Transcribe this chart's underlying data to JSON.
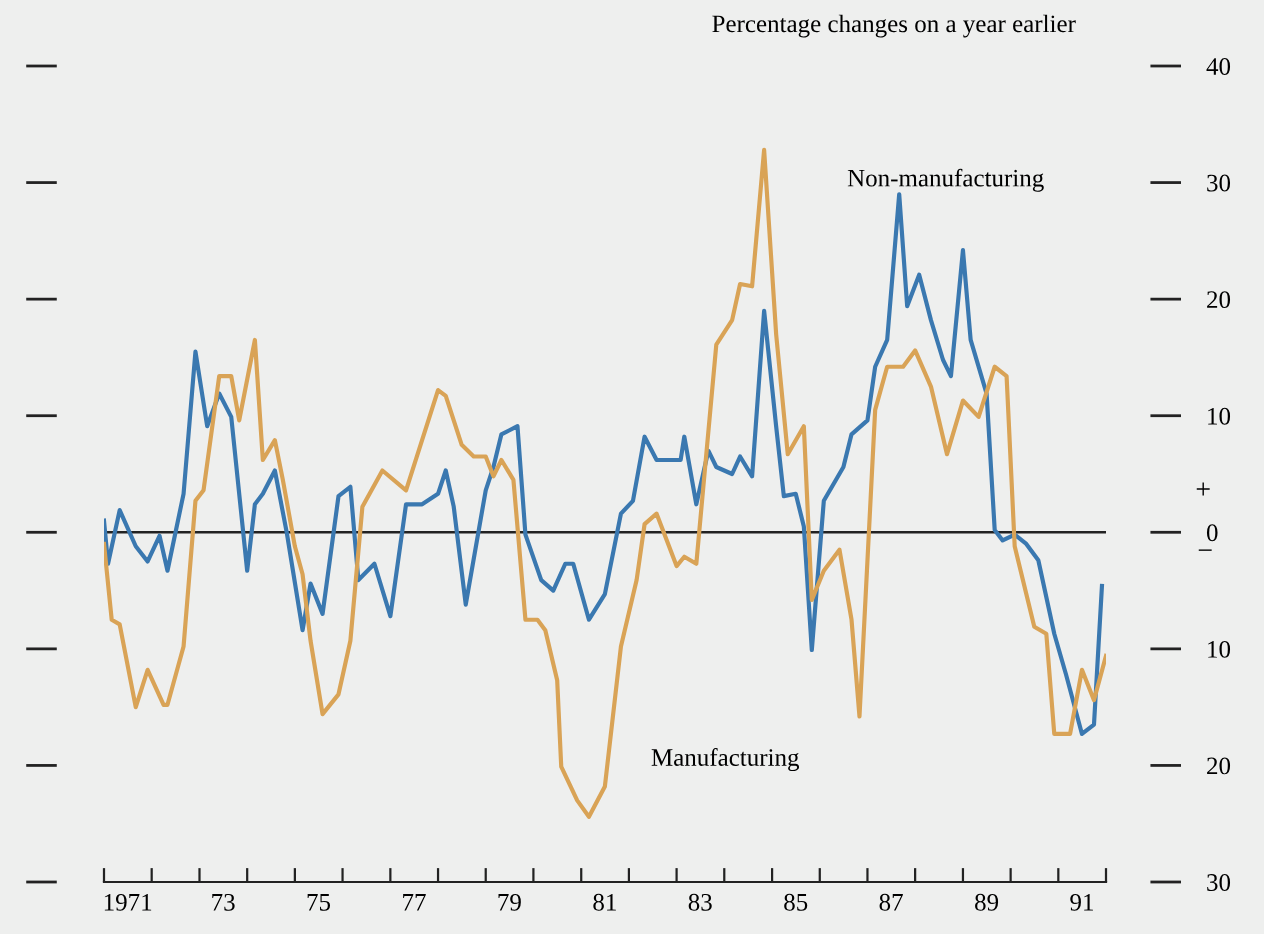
{
  "chart_data": {
    "type": "line",
    "ylabel": "Percentage changes on a year earlier",
    "annotations": [
      "+",
      "−"
    ],
    "series": [
      {
        "name": "Non-manufacturing",
        "color": "#3a78b0",
        "x": [
          "1971-01",
          "1971-02",
          "1971-05",
          "1971-09",
          "1971-12",
          "1972-03",
          "1972-05",
          "1972-09",
          "1972-12",
          "1973-03",
          "1973-06",
          "1973-09",
          "1974-01",
          "1974-03",
          "1974-05",
          "1974-08",
          "1974-11",
          "1975-03",
          "1975-05",
          "1975-08",
          "1975-12",
          "1976-03",
          "1976-05",
          "1976-09",
          "1977-01",
          "1977-05",
          "1977-09",
          "1978-01",
          "1978-03",
          "1978-05",
          "1978-08",
          "1979-01",
          "1979-03",
          "1979-05",
          "1979-09",
          "1979-11",
          "1980-03",
          "1980-06",
          "1980-09",
          "1980-11",
          "1981-03",
          "1981-07",
          "1981-11",
          "1982-02",
          "1982-05",
          "1982-08",
          "1983-02",
          "1983-03",
          "1983-06",
          "1983-09",
          "1983-11",
          "1984-03",
          "1984-05",
          "1984-08",
          "1984-11",
          "1985-02",
          "1985-04",
          "1985-07",
          "1985-09",
          "1985-11",
          "1986-02",
          "1986-07",
          "1986-09",
          "1987-01",
          "1987-03",
          "1987-06",
          "1987-09",
          "1987-11",
          "1988-02",
          "1988-05",
          "1988-08",
          "1988-10",
          "1989-01",
          "1989-03",
          "1989-07",
          "1989-09",
          "1989-11",
          "1990-02",
          "1990-05",
          "1990-08",
          "1990-12",
          "1991-03",
          "1991-07",
          "1991-10",
          "1991-12"
        ],
        "values": [
          1.0,
          -2.7,
          1.9,
          -1.2,
          -2.5,
          -0.3,
          -3.3,
          3.3,
          15.5,
          9.1,
          11.9,
          9.9,
          -3.3,
          2.4,
          3.3,
          5.3,
          -0.1,
          -8.4,
          -4.4,
          -7.0,
          3.1,
          3.9,
          -4.1,
          -2.7,
          -7.2,
          2.4,
          2.4,
          3.3,
          5.3,
          2.2,
          -6.2,
          3.6,
          5.6,
          8.4,
          9.1,
          -0.2,
          -4.1,
          -5.0,
          -2.7,
          -2.7,
          -7.5,
          -5.3,
          1.6,
          2.7,
          8.2,
          6.2,
          6.2,
          8.2,
          2.4,
          7.0,
          5.6,
          5.0,
          6.5,
          4.8,
          19.0,
          9.1,
          3.1,
          3.3,
          0.5,
          -10.1,
          2.7,
          5.6,
          8.4,
          9.6,
          14.2,
          16.5,
          29.0,
          19.4,
          22.1,
          18.2,
          14.8,
          13.4,
          24.2,
          16.5,
          11.9,
          0.2,
          -0.7,
          -0.2,
          -1.0,
          -2.4,
          -8.7,
          -12.2,
          -17.3,
          -16.5,
          -4.6
        ]
      },
      {
        "name": "Manufacturing",
        "color": "#d9a356",
        "x": [
          "1971-01",
          "1971-03",
          "1971-05",
          "1971-09",
          "1971-12",
          "1972-04",
          "1972-05",
          "1972-09",
          "1972-12",
          "1973-02",
          "1973-06",
          "1973-09",
          "1973-11",
          "1974-03",
          "1974-05",
          "1974-08",
          "1974-10",
          "1975-01",
          "1975-03",
          "1975-05",
          "1975-08",
          "1975-12",
          "1976-03",
          "1976-06",
          "1976-11",
          "1977-05",
          "1978-01",
          "1978-03",
          "1978-07",
          "1978-10",
          "1979-01",
          "1979-03",
          "1979-05",
          "1979-08",
          "1979-11",
          "1980-02",
          "1980-04",
          "1980-07",
          "1980-08",
          "1980-12",
          "1981-03",
          "1981-07",
          "1981-11",
          "1982-03",
          "1982-05",
          "1982-08",
          "1983-01",
          "1983-03",
          "1983-06",
          "1983-11",
          "1984-03",
          "1984-05",
          "1984-08",
          "1984-11",
          "1985-02",
          "1985-05",
          "1985-09",
          "1985-11",
          "1986-02",
          "1986-06",
          "1986-09",
          "1986-11",
          "1987-03",
          "1987-06",
          "1987-10",
          "1988-01",
          "1988-05",
          "1988-09",
          "1989-01",
          "1989-05",
          "1989-09",
          "1989-12",
          "1990-02",
          "1990-07",
          "1990-10",
          "1990-12",
          "1991-04",
          "1991-07",
          "1991-10",
          "1992-01"
        ],
        "values": [
          -1.0,
          -7.5,
          -7.9,
          -15.0,
          -11.8,
          -14.8,
          -14.8,
          -9.8,
          2.7,
          3.6,
          13.4,
          13.4,
          9.6,
          16.5,
          6.2,
          7.9,
          4.5,
          -1.2,
          -3.6,
          -9.3,
          -15.6,
          -13.9,
          -9.3,
          2.2,
          5.3,
          3.6,
          12.2,
          11.7,
          7.5,
          6.5,
          6.5,
          4.8,
          6.2,
          4.5,
          -7.5,
          -7.5,
          -8.4,
          -12.7,
          -20.1,
          -23.0,
          -24.4,
          -21.8,
          -9.8,
          -4.1,
          0.7,
          1.6,
          -2.9,
          -2.1,
          -2.7,
          16.1,
          18.2,
          21.3,
          21.1,
          32.8,
          17.0,
          6.7,
          9.1,
          -5.8,
          -3.3,
          -1.5,
          -7.5,
          -15.8,
          10.5,
          14.2,
          14.2,
          15.6,
          12.5,
          6.7,
          11.3,
          9.9,
          14.2,
          13.4,
          -1.2,
          -8.1,
          -8.7,
          -17.3,
          -17.3,
          -11.8,
          -14.4,
          -10.6
        ]
      }
    ],
    "xlim": [
      "1971-01-01",
      "1992-01-01"
    ],
    "xticks": [
      {
        "value": "1971-01-01",
        "label": null
      },
      {
        "value": "1972-01-01",
        "label": null
      },
      {
        "value": "1973-01-01",
        "label": null
      },
      {
        "value": "1974-01-01",
        "label": null
      },
      {
        "value": "1975-01-01",
        "label": null
      },
      {
        "value": "1976-01-01",
        "label": null
      },
      {
        "value": "1977-01-01",
        "label": null
      },
      {
        "value": "1978-01-01",
        "label": null
      },
      {
        "value": "1979-01-01",
        "label": null
      },
      {
        "value": "1980-01-01",
        "label": null
      },
      {
        "value": "1981-01-01",
        "label": null
      },
      {
        "value": "1982-01-01",
        "label": null
      },
      {
        "value": "1983-01-01",
        "label": null
      },
      {
        "value": "1984-01-01",
        "label": null
      },
      {
        "value": "1985-01-01",
        "label": null
      },
      {
        "value": "1986-01-01",
        "label": null
      },
      {
        "value": "1987-01-01",
        "label": null
      },
      {
        "value": "1988-01-01",
        "label": null
      },
      {
        "value": "1989-01-01",
        "label": null
      },
      {
        "value": "1990-01-01",
        "label": null
      },
      {
        "value": "1991-01-01",
        "label": null
      },
      {
        "value": "1992-01-01",
        "label": null
      },
      {
        "value": "1971-07-01",
        "label": "1971"
      },
      {
        "value": "1973-07-01",
        "label": "73"
      },
      {
        "value": "1975-07-01",
        "label": "75"
      },
      {
        "value": "1977-07-01",
        "label": "77"
      },
      {
        "value": "1979-07-01",
        "label": "79"
      },
      {
        "value": "1981-07-01",
        "label": "81"
      },
      {
        "value": "1983-07-01",
        "label": "83"
      },
      {
        "value": "1985-07-01",
        "label": "85"
      },
      {
        "value": "1987-07-01",
        "label": "87"
      },
      {
        "value": "1989-07-01",
        "label": "89"
      },
      {
        "value": "1991-07-01",
        "label": "91"
      }
    ],
    "ylim": [
      -30,
      40
    ],
    "yticks": [
      {
        "value": -30,
        "label": "30"
      },
      {
        "value": -20,
        "label": "20"
      },
      {
        "value": -10,
        "label": "10"
      },
      0,
      10,
      20,
      30,
      40
    ],
    "ref_lines": [
      {
        "axis": "y",
        "value": 0,
        "color": "#222222"
      }
    ],
    "grid": false,
    "legend": false,
    "marker": "none",
    "line_style": "solid"
  }
}
